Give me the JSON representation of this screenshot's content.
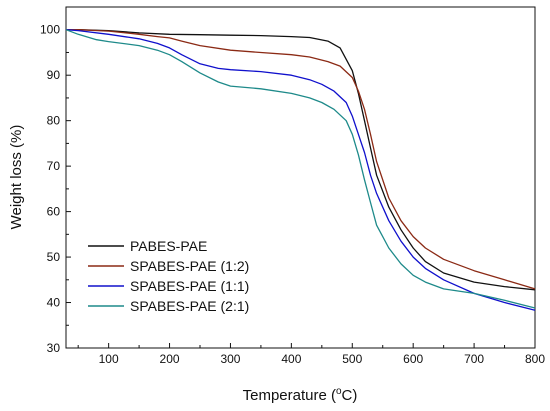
{
  "chart_data": {
    "type": "line",
    "title": "",
    "xlabel_main": "Temperature (",
    "xlabel_unit_sup": "o",
    "xlabel_unit_tail": "C)",
    "ylabel": "Weight loss (%)",
    "xlim": [
      30,
      800
    ],
    "ylim": [
      30,
      105
    ],
    "x_ticks": [
      100,
      200,
      300,
      400,
      500,
      600,
      700,
      800
    ],
    "y_ticks": [
      30,
      40,
      50,
      60,
      70,
      80,
      90,
      100
    ],
    "grid": false,
    "legend_position": "bottom-left",
    "series": [
      {
        "name": "PABES-PAE",
        "color": "#111111",
        "x": [
          30,
          50,
          100,
          150,
          200,
          250,
          300,
          350,
          400,
          430,
          460,
          480,
          500,
          510,
          520,
          530,
          540,
          560,
          580,
          600,
          620,
          650,
          700,
          750,
          800
        ],
        "y": [
          100,
          100,
          99.8,
          99.3,
          99.0,
          98.9,
          98.8,
          98.7,
          98.5,
          98.3,
          97.5,
          96,
          91,
          86,
          80,
          74,
          68,
          61,
          56,
          52,
          49,
          46.5,
          44.5,
          43.5,
          42.8
        ]
      },
      {
        "name": "SPABES-PAE (1:2)",
        "color": "#8B2A15",
        "x": [
          30,
          50,
          100,
          150,
          180,
          200,
          220,
          250,
          300,
          350,
          400,
          430,
          460,
          480,
          500,
          510,
          520,
          530,
          540,
          560,
          580,
          600,
          620,
          650,
          700,
          750,
          800
        ],
        "y": [
          100,
          100,
          99.7,
          99.0,
          98.5,
          98.2,
          97.5,
          96.5,
          95.5,
          95.0,
          94.5,
          94.0,
          93.0,
          92.0,
          89.5,
          86.5,
          82.5,
          77,
          71,
          63,
          58,
          54.5,
          52,
          49.5,
          47,
          45,
          43
        ]
      },
      {
        "name": "SPABES-PAE (1:1)",
        "color": "#1010CC",
        "x": [
          30,
          50,
          100,
          150,
          180,
          200,
          220,
          250,
          280,
          300,
          350,
          400,
          430,
          450,
          470,
          490,
          500,
          510,
          520,
          530,
          540,
          560,
          580,
          600,
          620,
          650,
          700,
          750,
          800
        ],
        "y": [
          100,
          99.8,
          99.0,
          98.0,
          97.0,
          96.0,
          94.5,
          92.5,
          91.5,
          91.2,
          90.8,
          90.0,
          89.0,
          88.0,
          86.5,
          84.0,
          81.0,
          77,
          73,
          68,
          64,
          58,
          53.5,
          50,
          47.5,
          45,
          42,
          40,
          38.3
        ]
      },
      {
        "name": "SPABES-PAE (2:1)",
        "color": "#1E8A8A",
        "x": [
          30,
          50,
          80,
          100,
          150,
          180,
          200,
          220,
          250,
          280,
          300,
          350,
          400,
          430,
          450,
          470,
          490,
          500,
          510,
          520,
          530,
          540,
          560,
          580,
          600,
          620,
          650,
          700,
          750,
          800
        ],
        "y": [
          100,
          99.0,
          97.8,
          97.4,
          96.5,
          95.5,
          94.5,
          93.0,
          90.5,
          88.5,
          87.6,
          87.0,
          86.0,
          85.0,
          84.0,
          82.5,
          80.0,
          77,
          72.5,
          67,
          62,
          57,
          52,
          48.5,
          46,
          44.5,
          43,
          42,
          40.5,
          38.8
        ]
      }
    ]
  }
}
